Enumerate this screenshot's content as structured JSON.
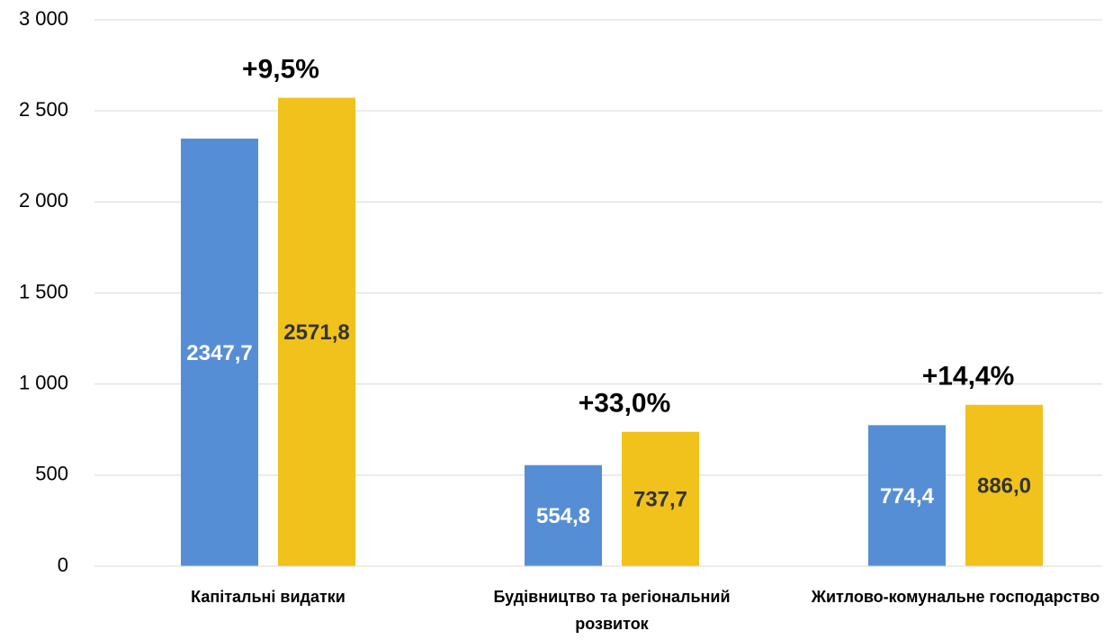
{
  "chart_data": {
    "type": "bar",
    "categories": [
      "Капітальні видатки",
      "Будівництво та регіональний розвиток",
      "Житлово-комунальне господарство"
    ],
    "series": [
      {
        "color": "#558ed5",
        "values": [
          2347.7,
          554.8,
          774.4
        ],
        "value_labels": [
          "2347,7",
          "554,8",
          "774,4"
        ]
      },
      {
        "color": "#f0c21b",
        "values": [
          2571.8,
          737.7,
          886.0
        ],
        "value_labels": [
          "2571,8",
          "737,7",
          "886,0"
        ]
      }
    ],
    "annotations": [
      "+9,5%",
      "+33,0%",
      "+14,4%"
    ],
    "ylim": [
      0,
      3000
    ],
    "yticks": [
      0,
      500,
      {
        "value": 1000,
        "label": "1 000"
      },
      {
        "value": 1500,
        "label": "1 500"
      },
      {
        "value": 2000,
        "label": "2 000"
      },
      {
        "value": 2500,
        "label": "2 500"
      },
      {
        "value": 3000,
        "label": "3 000"
      }
    ],
    "grid": true
  }
}
